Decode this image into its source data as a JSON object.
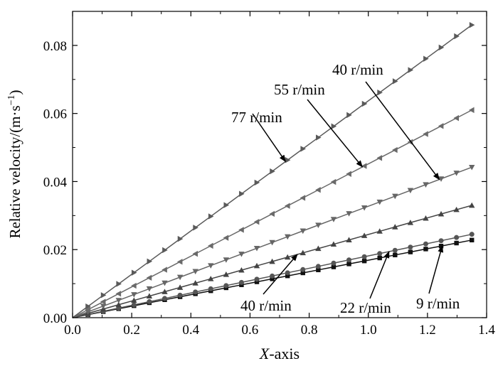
{
  "chart_data": {
    "type": "line",
    "xlabel": "X-axis",
    "ylabel": "Relative velocity/(m·s",
    "ylabel_sup": "−1",
    "ylabel_tail": ")",
    "xlim": [
      0.0,
      1.4
    ],
    "ylim": [
      0.0,
      0.09
    ],
    "x_ticks": [
      "0.0",
      "0.2",
      "0.4",
      "0.6",
      "0.8",
      "1.0",
      "1.2",
      "1.4"
    ],
    "y_ticks": [
      "0.00",
      "0.02",
      "0.04",
      "0.06",
      "0.08"
    ],
    "x_tick_values": [
      0.0,
      0.2,
      0.4,
      0.6,
      0.8,
      1.0,
      1.2,
      1.4
    ],
    "y_tick_values": [
      0.0,
      0.02,
      0.04,
      0.06,
      0.08
    ],
    "x_range": [
      0.0,
      1.35
    ],
    "point_count": 27,
    "grid": false,
    "series": [
      {
        "name": "9 r/min",
        "end_value": 0.0228,
        "marker": "square",
        "color": "#111111"
      },
      {
        "name": "22 r/min",
        "end_value": 0.0245,
        "marker": "circle",
        "color": "#555555"
      },
      {
        "name": "40 r/min",
        "end_value": 0.033,
        "marker": "triangle-up",
        "color": "#444444"
      },
      {
        "name": "40 r/min",
        "end_value": 0.0442,
        "marker": "triangle-down",
        "color": "#666666"
      },
      {
        "name": "55 r/min",
        "end_value": 0.061,
        "marker": "triangle-left",
        "color": "#6a6a6a"
      },
      {
        "name": "77 r/min",
        "end_value": 0.086,
        "marker": "triangle-right",
        "color": "#5a5a5a"
      }
    ],
    "annotations": [
      {
        "text": "77 r/min",
        "series_index": 5,
        "x": 0.72
      },
      {
        "text": "55 r/min",
        "series_index": 4,
        "x": 0.98
      },
      {
        "text": "40 r/min",
        "series_index": 3,
        "x": 1.24
      },
      {
        "text": "40 r/min",
        "series_index": 2,
        "x": 0.76
      },
      {
        "text": "22 r/min",
        "series_index": 1,
        "x": 1.07
      },
      {
        "text": "9 r/min",
        "series_index": 0,
        "x": 1.25
      }
    ]
  }
}
